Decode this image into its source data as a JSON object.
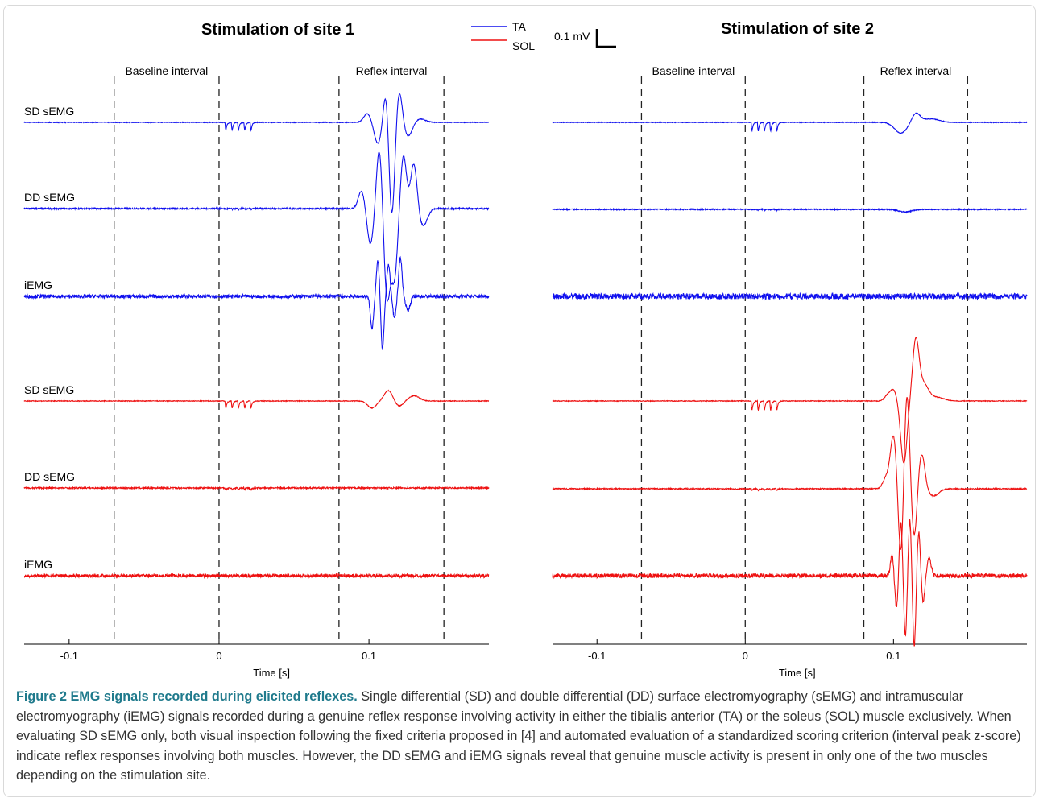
{
  "figure": {
    "legend": {
      "items": [
        {
          "label": "TA",
          "color": "#1010ee"
        },
        {
          "label": "SOL",
          "color": "#ee1010"
        }
      ]
    },
    "scalebar": {
      "label": "0.1 mV"
    },
    "caption": {
      "title": "Figure 2 EMG signals recorded during elicited reflexes.",
      "body": " Single differential (SD) and double differential (DD) surface electromyography (sEMG) and intramuscular electromyography (iEMG) signals recorded during a genuine reflex response involving activity in either the tibialis anterior (TA) or the soleus (SOL) muscle exclusively. When evaluating SD sEMG only, both visual inspection following the fixed criteria proposed in [4] and automated evaluation of a standardized scoring criterion (interval peak z-score) indicate reflex responses involving both muscles. However, the DD sEMG and iEMG signals reveal that genuine muscle activity is present in only one of the two muscles depending on the stimulation site."
    }
  },
  "chart_data": [
    {
      "type": "line",
      "title": "Stimulation of site 1",
      "xlabel": "Time [s]",
      "xlim": [
        -0.13,
        0.18
      ],
      "xticks": [
        "-0.1",
        "0",
        "0.1"
      ],
      "xtick_values": [
        -0.1,
        0,
        0.1
      ],
      "intervals": [
        {
          "label": "Baseline interval",
          "start": -0.07,
          "end": 0.0
        },
        {
          "label": "Reflex interval",
          "start": 0.08,
          "end": 0.15
        }
      ],
      "stimulus": {
        "start": 0.004,
        "end": 0.025,
        "pulses": 5
      },
      "series": [
        {
          "name": "SD sEMG",
          "muscle": "TA",
          "stim_artifact": 0.11,
          "reflex": [
            {
              "t": 0.099,
              "a": 0.05,
              "w": 0.0035
            },
            {
              "t": 0.106,
              "a": -0.12,
              "w": 0.0035
            },
            {
              "t": 0.112,
              "a": 0.28,
              "w": 0.0028
            },
            {
              "t": 0.115,
              "a": -0.6,
              "w": 0.003
            },
            {
              "t": 0.12,
              "a": 0.2,
              "w": 0.003
            },
            {
              "t": 0.126,
              "a": -0.08,
              "w": 0.004
            },
            {
              "t": 0.134,
              "a": 0.02,
              "w": 0.005
            }
          ],
          "noise": 0.002
        },
        {
          "name": "DD sEMG",
          "muscle": "TA",
          "stim_artifact": 0.012,
          "reflex": [
            {
              "t": 0.095,
              "a": 0.1,
              "w": 0.003
            },
            {
              "t": 0.101,
              "a": -0.2,
              "w": 0.003
            },
            {
              "t": 0.107,
              "a": 0.35,
              "w": 0.0028
            },
            {
              "t": 0.112,
              "a": -0.5,
              "w": 0.003
            },
            {
              "t": 0.117,
              "a": -0.38,
              "w": 0.003
            },
            {
              "t": 0.123,
              "a": 0.3,
              "w": 0.0028
            },
            {
              "t": 0.13,
              "a": 0.26,
              "w": 0.003
            },
            {
              "t": 0.136,
              "a": -0.1,
              "w": 0.004
            }
          ],
          "noise": 0.004
        },
        {
          "name": "iEMG",
          "muscle": "TA",
          "stim_artifact": 0.004,
          "reflex": [
            {
              "t": 0.102,
              "a": -0.18,
              "w": 0.0015
            },
            {
              "t": 0.106,
              "a": 0.2,
              "w": 0.0015
            },
            {
              "t": 0.109,
              "a": -0.3,
              "w": 0.0015
            },
            {
              "t": 0.113,
              "a": 0.18,
              "w": 0.0015
            },
            {
              "t": 0.117,
              "a": -0.12,
              "w": 0.0015
            },
            {
              "t": 0.121,
              "a": 0.22,
              "w": 0.0015
            },
            {
              "t": 0.126,
              "a": -0.08,
              "w": 0.002
            }
          ],
          "noise": 0.01
        },
        {
          "name": "SD sEMG",
          "muscle": "SOL",
          "stim_artifact": 0.1,
          "reflex": [
            {
              "t": 0.102,
              "a": -0.04,
              "w": 0.004
            },
            {
              "t": 0.113,
              "a": 0.06,
              "w": 0.004
            },
            {
              "t": 0.12,
              "a": -0.03,
              "w": 0.004
            },
            {
              "t": 0.13,
              "a": 0.03,
              "w": 0.005
            }
          ],
          "noise": 0.002
        },
        {
          "name": "DD sEMG",
          "muscle": "SOL",
          "stim_artifact": 0.025,
          "reflex": [],
          "noise": 0.004
        },
        {
          "name": "iEMG",
          "muscle": "SOL",
          "stim_artifact": 0.004,
          "reflex": [],
          "noise": 0.009
        }
      ]
    },
    {
      "type": "line",
      "title": "Stimulation of site 2",
      "xlabel": "Time [s]",
      "xlim": [
        -0.13,
        0.19
      ],
      "xticks": [
        "-0.1",
        "0",
        "0.1"
      ],
      "xtick_values": [
        -0.1,
        0,
        0.1
      ],
      "intervals": [
        {
          "label": "Baseline interval",
          "start": -0.07,
          "end": 0.0
        },
        {
          "label": "Reflex interval",
          "start": 0.08,
          "end": 0.15
        }
      ],
      "stimulus": {
        "start": 0.004,
        "end": 0.025,
        "pulses": 5
      },
      "series": [
        {
          "name": "SD sEMG",
          "muscle": "TA",
          "stim_artifact": 0.12,
          "reflex": [
            {
              "t": 0.105,
              "a": -0.06,
              "w": 0.006
            },
            {
              "t": 0.115,
              "a": 0.05,
              "w": 0.004
            },
            {
              "t": 0.125,
              "a": 0.02,
              "w": 0.008
            }
          ],
          "noise": 0.002
        },
        {
          "name": "DD sEMG",
          "muscle": "TA",
          "stim_artifact": 0.012,
          "reflex": [
            {
              "t": 0.108,
              "a": -0.015,
              "w": 0.006
            }
          ],
          "noise": 0.003
        },
        {
          "name": "iEMG",
          "muscle": "TA",
          "stim_artifact": 0.004,
          "reflex": [],
          "noise": 0.016
        },
        {
          "name": "SD sEMG",
          "muscle": "SOL",
          "stim_artifact": 0.13,
          "reflex": [
            {
              "t": 0.096,
              "a": 0.03,
              "w": 0.003
            },
            {
              "t": 0.1,
              "a": 0.06,
              "w": 0.003
            },
            {
              "t": 0.107,
              "a": -0.35,
              "w": 0.003
            },
            {
              "t": 0.115,
              "a": 0.32,
              "w": 0.003
            },
            {
              "t": 0.12,
              "a": 0.1,
              "w": 0.005
            },
            {
              "t": 0.13,
              "a": 0.02,
              "w": 0.006
            }
          ],
          "noise": 0.002
        },
        {
          "name": "DD sEMG",
          "muscle": "SOL",
          "stim_artifact": 0.02,
          "reflex": [
            {
              "t": 0.095,
              "a": 0.06,
              "w": 0.003
            },
            {
              "t": 0.1,
              "a": 0.3,
              "w": 0.003
            },
            {
              "t": 0.105,
              "a": -0.4,
              "w": 0.0025
            },
            {
              "t": 0.109,
              "a": 0.55,
              "w": 0.0025
            },
            {
              "t": 0.114,
              "a": -0.28,
              "w": 0.0025
            },
            {
              "t": 0.119,
              "a": 0.2,
              "w": 0.003
            },
            {
              "t": 0.127,
              "a": -0.04,
              "w": 0.005
            }
          ],
          "noise": 0.003
        },
        {
          "name": "iEMG",
          "muscle": "SOL",
          "stim_artifact": 0.006,
          "reflex": [
            {
              "t": 0.099,
              "a": 0.12,
              "w": 0.0015
            },
            {
              "t": 0.102,
              "a": -0.18,
              "w": 0.0015
            },
            {
              "t": 0.105,
              "a": 0.3,
              "w": 0.0015
            },
            {
              "t": 0.108,
              "a": -0.35,
              "w": 0.0015
            },
            {
              "t": 0.111,
              "a": 0.32,
              "w": 0.0015
            },
            {
              "t": 0.114,
              "a": -0.4,
              "w": 0.0015
            },
            {
              "t": 0.117,
              "a": 0.25,
              "w": 0.0015
            },
            {
              "t": 0.12,
              "a": -0.15,
              "w": 0.0015
            },
            {
              "t": 0.124,
              "a": 0.1,
              "w": 0.002
            }
          ],
          "noise": 0.012
        }
      ]
    }
  ]
}
